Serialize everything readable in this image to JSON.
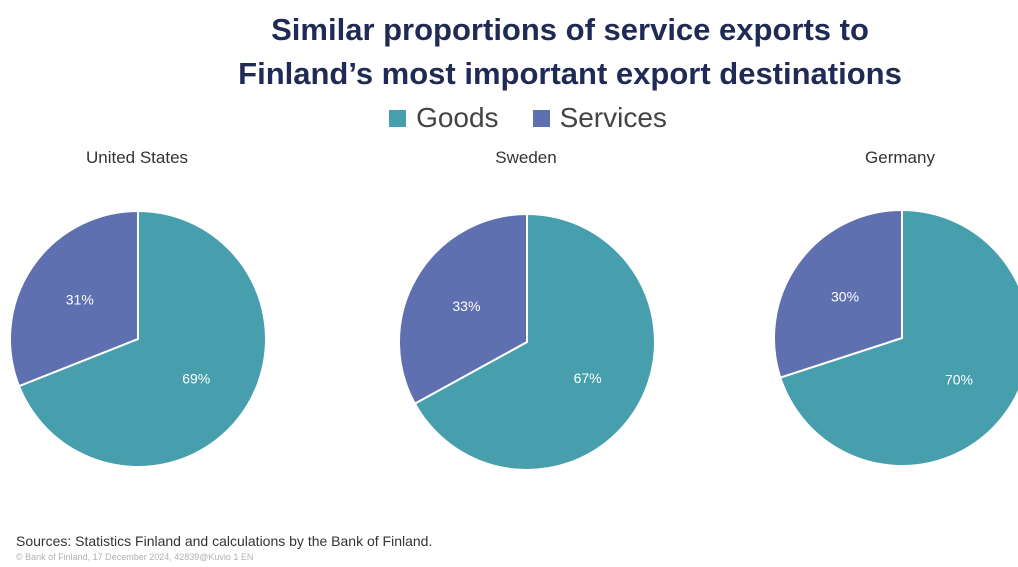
{
  "title_lines": [
    "Similar proportions of service exports to",
    "Finland’s most important export destinations"
  ],
  "legend": [
    {
      "label": "Goods",
      "color": "#479fae"
    },
    {
      "label": "Services",
      "color": "#5f70b1"
    }
  ],
  "chart_data": [
    {
      "type": "pie",
      "title": "United States",
      "categories": [
        "Goods",
        "Services"
      ],
      "values": [
        69,
        31
      ],
      "labels": [
        "69%",
        "31%"
      ],
      "colors": [
        "#479fae",
        "#5f70b1"
      ]
    },
    {
      "type": "pie",
      "title": "Sweden",
      "categories": [
        "Goods",
        "Services"
      ],
      "values": [
        67,
        33
      ],
      "labels": [
        "67%",
        "33%"
      ],
      "colors": [
        "#479fae",
        "#5f70b1"
      ]
    },
    {
      "type": "pie",
      "title": "Germany",
      "categories": [
        "Goods",
        "Services"
      ],
      "values": [
        70,
        30
      ],
      "labels": [
        "70%",
        "30%"
      ],
      "colors": [
        "#479fae",
        "#5f70b1"
      ]
    }
  ],
  "sources": "Sources: Statistics Finland and calculations by the Bank of Finland.",
  "copyright": "© Bank of Finland, 17 December 2024, 42839@Kuvio 1 EN"
}
